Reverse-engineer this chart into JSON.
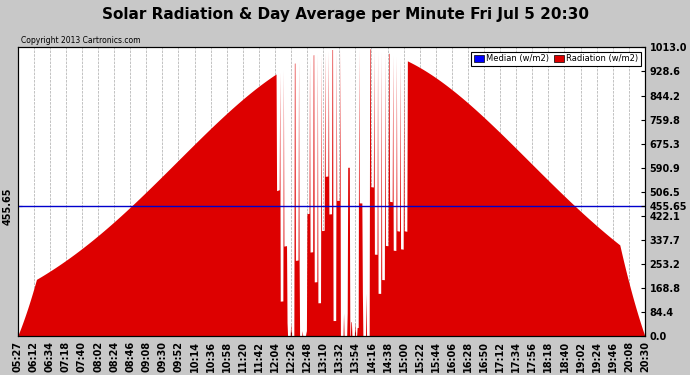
{
  "title": "Solar Radiation & Day Average per Minute Fri Jul 5 20:30",
  "copyright": "Copyright 2013 Cartronics.com",
  "median_label": "Median (w/m2)",
  "radiation_label": "Radiation (w/m2)",
  "median_value": 455.65,
  "y_max": 1013.0,
  "y_min": 0.0,
  "y_ticks": [
    0.0,
    84.4,
    168.8,
    253.2,
    337.7,
    422.1,
    506.5,
    590.9,
    675.3,
    759.8,
    844.2,
    928.6,
    1013.0
  ],
  "background_color": "#c8c8c8",
  "plot_bg_color": "#ffffff",
  "fill_color": "#dd0000",
  "median_line_color": "#0000cc",
  "grid_color": "#aaaaaa",
  "title_fontsize": 11,
  "tick_fontsize": 7,
  "x_labels": [
    "05:27",
    "06:12",
    "06:34",
    "07:18",
    "07:40",
    "08:02",
    "08:24",
    "08:46",
    "09:08",
    "09:30",
    "09:52",
    "10:14",
    "10:36",
    "10:58",
    "11:20",
    "11:42",
    "12:04",
    "12:26",
    "12:48",
    "13:10",
    "13:32",
    "13:54",
    "14:16",
    "14:38",
    "15:00",
    "15:22",
    "15:44",
    "16:06",
    "16:28",
    "16:50",
    "17:12",
    "17:34",
    "17:56",
    "18:18",
    "18:40",
    "19:02",
    "19:24",
    "19:46",
    "20:08",
    "20:30"
  ]
}
